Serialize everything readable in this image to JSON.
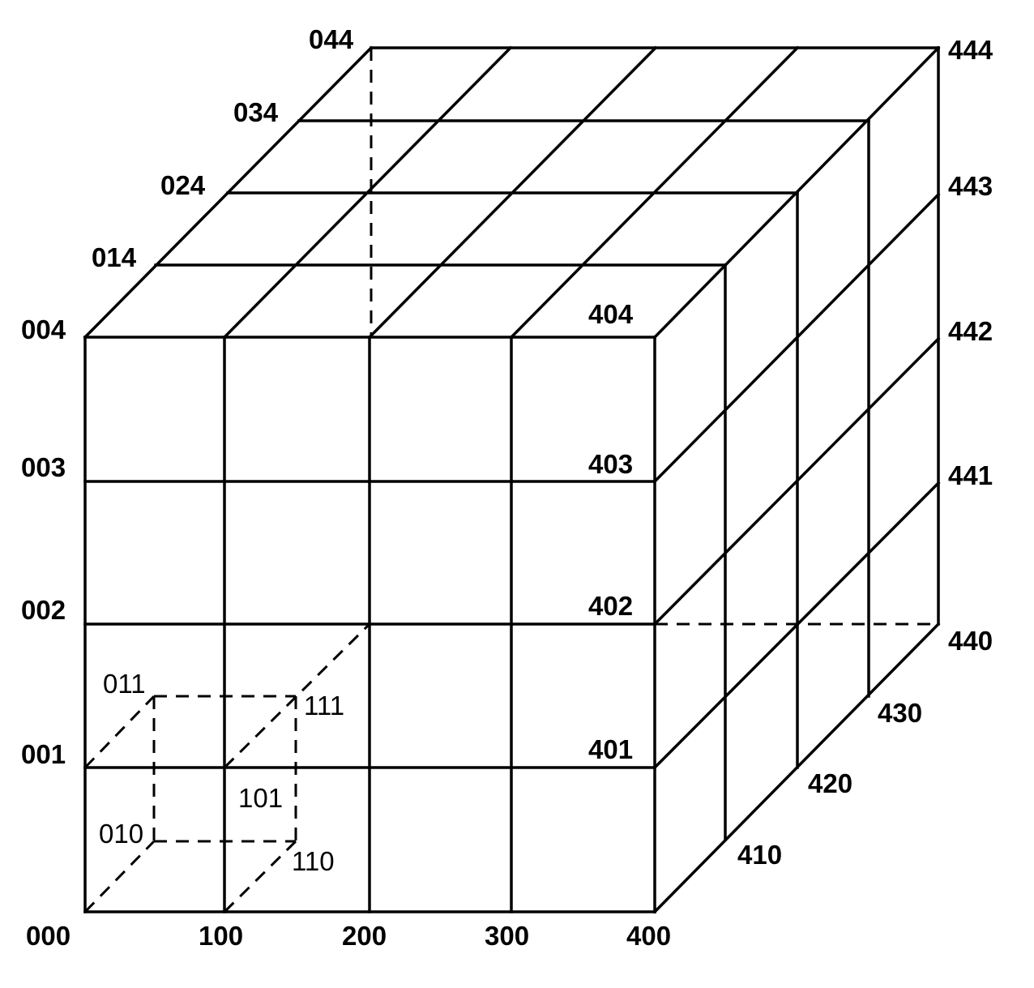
{
  "labels": {
    "l000": "000",
    "l100": "100",
    "l200": "200",
    "l300": "300",
    "l400": "400",
    "l001": "001",
    "l002": "002",
    "l003": "003",
    "l004": "004",
    "l014": "014",
    "l024": "024",
    "l034": "034",
    "l044": "044",
    "l401": "401",
    "l402": "402",
    "l403": "403",
    "l404": "404",
    "l410": "410",
    "l420": "420",
    "l430": "430",
    "l440": "440",
    "l441": "441",
    "l442": "442",
    "l443": "443",
    "l444": "444",
    "l011": "011",
    "l111": "111",
    "l101": "101",
    "l010": "010",
    "l110": "110"
  }
}
